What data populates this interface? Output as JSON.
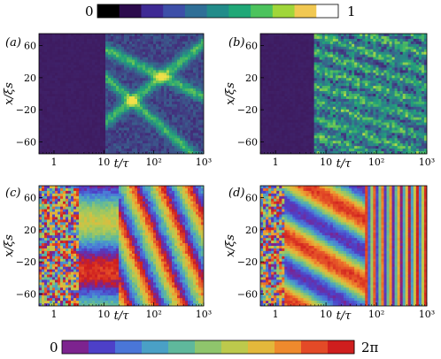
{
  "figure": {
    "colorbar_top": {
      "min_label": "0",
      "max_label": "1",
      "colors": [
        "#000000",
        "#2c0b4c",
        "#3e2a94",
        "#3d4fa8",
        "#2f6f97",
        "#228c8a",
        "#20a877",
        "#4cc35d",
        "#a0d63a",
        "#f1c852",
        "#ffffff"
      ]
    },
    "colorbar_bottom": {
      "min_label": "0",
      "max_label": "2π",
      "colors": [
        "#7d238f",
        "#4d40c8",
        "#4a76d8",
        "#4aa0c6",
        "#5fb89c",
        "#8fc56c",
        "#bdc94c",
        "#e3b83b",
        "#ef8a2d",
        "#e34a27",
        "#cf1e1e"
      ]
    },
    "panels": [
      {
        "tag": "(a)",
        "kind": "density"
      },
      {
        "tag": "(b)",
        "kind": "density"
      },
      {
        "tag": "(c)",
        "kind": "phase"
      },
      {
        "tag": "(d)",
        "kind": "phase"
      }
    ]
  },
  "chart_data": [
    {
      "type": "heatmap",
      "panel": "(a)",
      "xlabel": "t/τ",
      "ylabel": "x/ξs",
      "xscale": "log",
      "xlim": [
        0.5,
        1000
      ],
      "ylim": [
        -75,
        75
      ],
      "xticks": [
        {
          "v": 1,
          "t": "1"
        },
        {
          "v": 10,
          "t": "10"
        },
        {
          "v": 100,
          "t": "10²"
        },
        {
          "v": 1000,
          "t": "10³"
        }
      ],
      "yticks": [
        {
          "v": 60,
          "t": "60"
        },
        {
          "v": 20,
          "t": "20"
        },
        {
          "v": -20,
          "t": "−20"
        },
        {
          "v": -60,
          "t": "−60"
        }
      ],
      "colorbar": "0–1"
    },
    {
      "type": "heatmap",
      "panel": "(b)",
      "xlabel": "t/τ",
      "ylabel": "x/ξs",
      "xscale": "log",
      "xlim": [
        0.5,
        1000
      ],
      "ylim": [
        -75,
        75
      ],
      "xticks": [
        {
          "v": 1,
          "t": "1"
        },
        {
          "v": 10,
          "t": "10"
        },
        {
          "v": 100,
          "t": "10²"
        },
        {
          "v": 1000,
          "t": "10³"
        }
      ],
      "yticks": [
        {
          "v": 60,
          "t": "60"
        },
        {
          "v": 20,
          "t": "20"
        },
        {
          "v": -20,
          "t": "−20"
        },
        {
          "v": -60,
          "t": "−60"
        }
      ],
      "colorbar": "0–1"
    },
    {
      "type": "heatmap",
      "panel": "(c)",
      "xlabel": "t/τ",
      "ylabel": "x/ξs",
      "xscale": "log",
      "xlim": [
        0.5,
        1000
      ],
      "ylim": [
        -75,
        75
      ],
      "xticks": [
        {
          "v": 1,
          "t": "1"
        },
        {
          "v": 10,
          "t": "10"
        },
        {
          "v": 100,
          "t": "10²"
        },
        {
          "v": 1000,
          "t": "10³"
        }
      ],
      "yticks": [
        {
          "v": 60,
          "t": "60"
        },
        {
          "v": 20,
          "t": "20"
        },
        {
          "v": -20,
          "t": "−20"
        },
        {
          "v": -60,
          "t": "−60"
        }
      ],
      "colorbar": "0–2π"
    },
    {
      "type": "heatmap",
      "panel": "(d)",
      "xlabel": "t/τ",
      "ylabel": "x/ξs",
      "xscale": "log",
      "xlim": [
        0.5,
        1000
      ],
      "ylim": [
        -75,
        75
      ],
      "xticks": [
        {
          "v": 1,
          "t": "1"
        },
        {
          "v": 10,
          "t": "10"
        },
        {
          "v": 100,
          "t": "10²"
        },
        {
          "v": 1000,
          "t": "10³"
        }
      ],
      "yticks": [
        {
          "v": 60,
          "t": "60"
        },
        {
          "v": 20,
          "t": "20"
        },
        {
          "v": -20,
          "t": "−20"
        },
        {
          "v": -60,
          "t": "−60"
        }
      ],
      "colorbar": "0–2π"
    }
  ]
}
